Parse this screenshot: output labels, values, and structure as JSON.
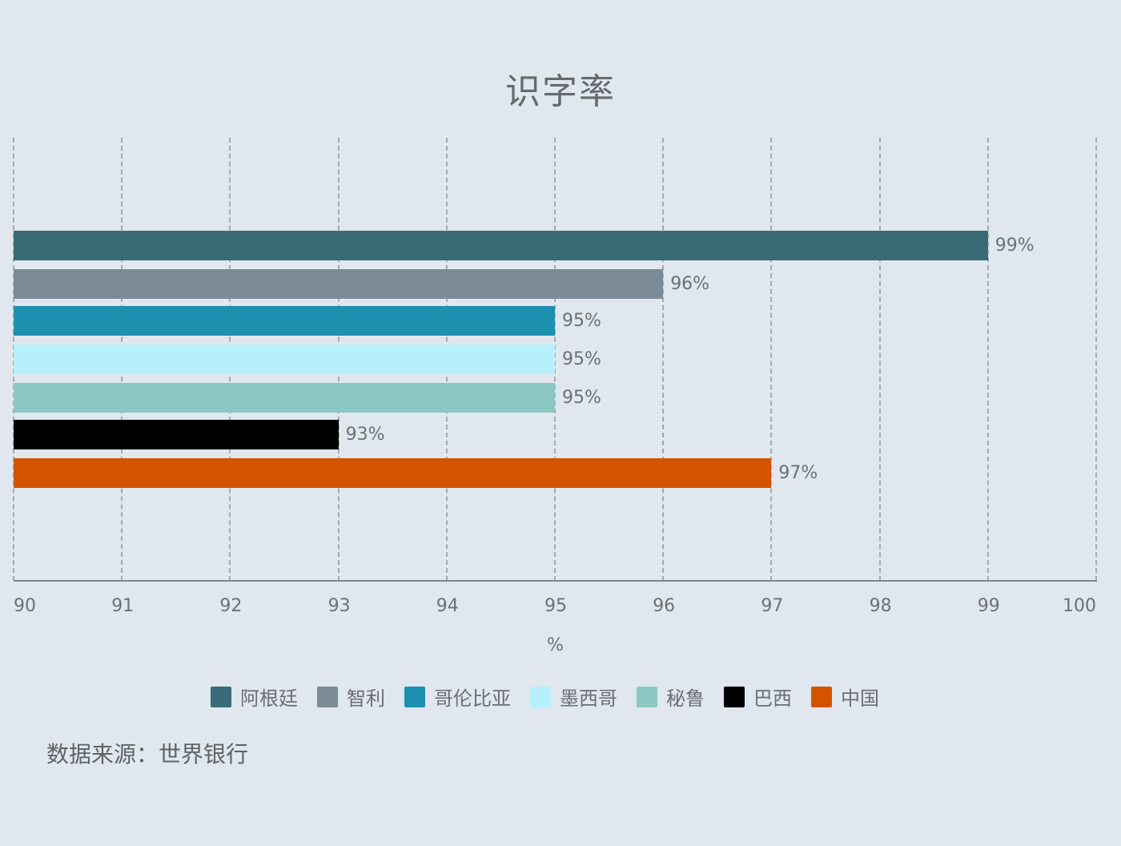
{
  "title": "识字率",
  "axis": {
    "x_title": "%",
    "ticks": [
      "90",
      "91",
      "92",
      "93",
      "94",
      "95",
      "96",
      "97",
      "98",
      "99",
      "100"
    ]
  },
  "bars": [
    {
      "name": "阿根廷",
      "value": 99,
      "label": "99%",
      "color": "#386b75"
    },
    {
      "name": "智利",
      "value": 96,
      "label": "96%",
      "color": "#7a8b96"
    },
    {
      "name": "哥伦比亚",
      "value": 95,
      "label": "95%",
      "color": "#1e90b0"
    },
    {
      "name": "墨西哥",
      "value": 95,
      "label": "95%",
      "color": "#b6f0fb"
    },
    {
      "name": "秘鲁",
      "value": 95,
      "label": "95%",
      "color": "#8cc7c4"
    },
    {
      "name": "巴西",
      "value": 93,
      "label": "93%",
      "color": "#000000"
    },
    {
      "name": "中国",
      "value": 97,
      "label": "97%",
      "color": "#d35400"
    }
  ],
  "legend": [
    "阿根廷",
    "智利",
    "哥伦比亚",
    "墨西哥",
    "秘鲁",
    "巴西",
    "中国"
  ],
  "source": "数据来源：世界银行",
  "chart_data": {
    "type": "bar",
    "orientation": "horizontal",
    "title": "识字率",
    "xlabel": "%",
    "ylabel": "",
    "xlim": [
      90,
      100
    ],
    "x_ticks": [
      90,
      91,
      92,
      93,
      94,
      95,
      96,
      97,
      98,
      99,
      100
    ],
    "grid": "vertical dashed",
    "legend_position": "bottom",
    "categories": [
      "阿根廷",
      "智利",
      "哥伦比亚",
      "墨西哥",
      "秘鲁",
      "巴西",
      "中国"
    ],
    "series": [
      {
        "name": "阿根廷",
        "values": [
          99
        ],
        "color": "#386b75"
      },
      {
        "name": "智利",
        "values": [
          96
        ],
        "color": "#7a8b96"
      },
      {
        "name": "哥伦比亚",
        "values": [
          95
        ],
        "color": "#1e90b0"
      },
      {
        "name": "墨西哥",
        "values": [
          95
        ],
        "color": "#b6f0fb"
      },
      {
        "name": "秘鲁",
        "values": [
          95
        ],
        "color": "#8cc7c4"
      },
      {
        "name": "巴西",
        "values": [
          93
        ],
        "color": "#000000"
      },
      {
        "name": "中国",
        "values": [
          97
        ],
        "color": "#d35400"
      }
    ],
    "values": [
      99,
      96,
      95,
      95,
      95,
      93,
      97
    ],
    "data_labels": [
      "99%",
      "96%",
      "95%",
      "95%",
      "95%",
      "93%",
      "97%"
    ],
    "annotation": "数据来源：世界银行"
  }
}
